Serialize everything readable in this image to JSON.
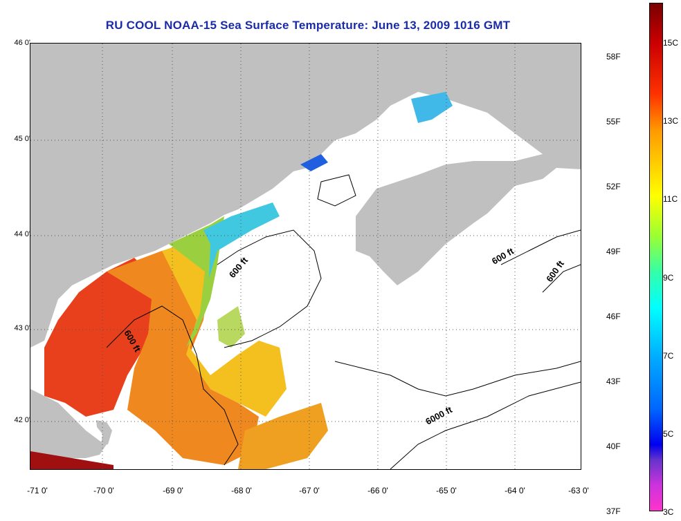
{
  "title": "RU COOL  NOAA-15  Sea Surface Temperature:  June 13, 2009 1016 GMT",
  "map": {
    "latitude_labels": [
      "46 0'",
      "45 0'",
      "44 0'",
      "43 0'",
      "42 0'"
    ],
    "longitude_labels": [
      "-71 0'",
      "-70 0'",
      "-69 0'",
      "-68 0'",
      "-67 0'",
      "-66 0'",
      "-65 0'",
      "-64 0'",
      "-63 0'"
    ],
    "contour_labels": [
      "600 ft",
      "600 ft",
      "600 ft",
      "600 ft",
      "6000 ft"
    ],
    "land_color": "#c0c0c0",
    "no_data_color": "#ffffff"
  },
  "colorbar": {
    "fahrenheit_labels": [
      "58F",
      "55F",
      "52F",
      "49F",
      "46F",
      "43F",
      "40F",
      "37F"
    ],
    "celsius_labels": [
      "15C",
      "13C",
      "11C",
      "9C",
      "7C",
      "5C",
      "3C"
    ]
  }
}
